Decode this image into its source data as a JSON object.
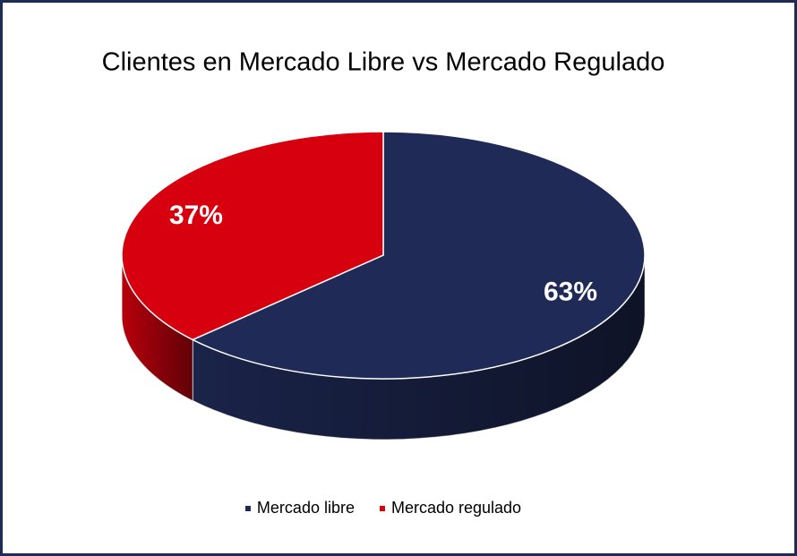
{
  "chart_data": {
    "type": "pie",
    "title": "Clientes en Mercado Libre vs Mercado Regulado",
    "categories": [
      "Mercado libre",
      "Mercado regulado"
    ],
    "values": [
      63,
      37
    ],
    "value_labels": [
      "63%",
      "37%"
    ],
    "colors": [
      "#1f2a56",
      "#d7000f"
    ],
    "legend": "bottom"
  }
}
